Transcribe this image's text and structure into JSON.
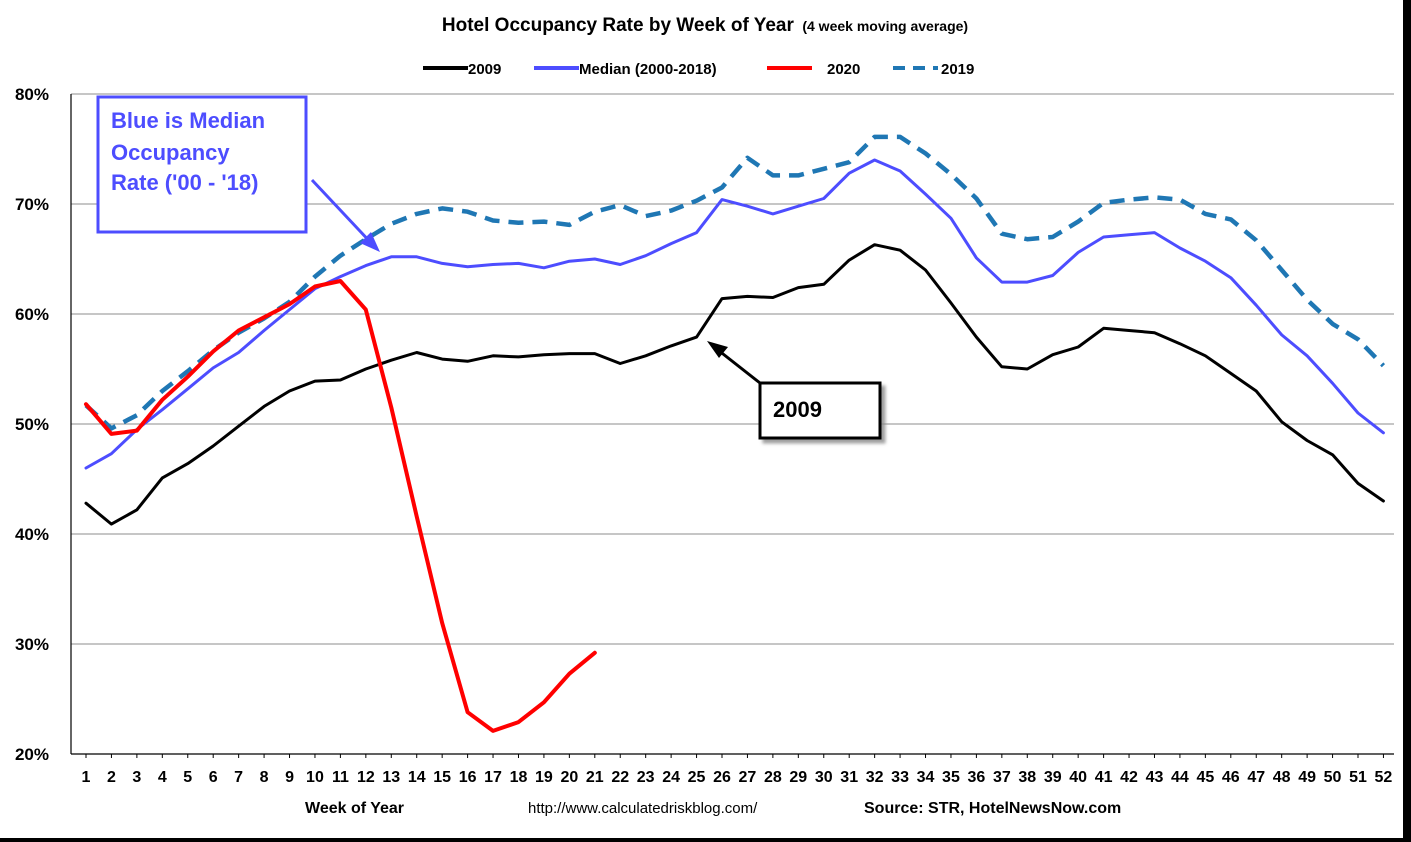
{
  "chart_data": {
    "type": "line",
    "title_main": "Hotel Occupancy Rate by  Week of Year",
    "title_sub": "(4 week moving average)",
    "xlabel": "Week of Year",
    "source_url": "http://www.calculatedriskblog.com/",
    "source_credit": "Source: STR, HotelNewsNow.com",
    "y_ticks": [
      "20%",
      "30%",
      "40%",
      "50%",
      "60%",
      "70%",
      "80%"
    ],
    "ylim": [
      20,
      80
    ],
    "x_ticks": [
      "1",
      "2",
      "3",
      "4",
      "5",
      "6",
      "7",
      "8",
      "9",
      "10",
      "11",
      "12",
      "13",
      "14",
      "15",
      "16",
      "17",
      "18",
      "19",
      "20",
      "21",
      "22",
      "23",
      "24",
      "25",
      "26",
      "27",
      "28",
      "29",
      "30",
      "31",
      "32",
      "33",
      "34",
      "35",
      "36",
      "37",
      "38",
      "39",
      "40",
      "41",
      "42",
      "43",
      "44",
      "45",
      "46",
      "47",
      "48",
      "49",
      "50",
      "51",
      "52"
    ],
    "grid": "horizontal",
    "legend_position": "top",
    "series": [
      {
        "name": "2009",
        "color": "#000000",
        "dash": "solid",
        "values": [
          42.8,
          40.9,
          42.2,
          45.1,
          46.4,
          48.0,
          49.8,
          51.6,
          53.0,
          53.9,
          54.0,
          55.0,
          55.8,
          56.5,
          55.9,
          55.7,
          56.2,
          56.1,
          56.3,
          56.4,
          56.4,
          55.5,
          56.2,
          57.1,
          57.9,
          61.4,
          61.6,
          61.5,
          62.4,
          62.7,
          64.9,
          66.3,
          65.8,
          64.0,
          61.0,
          57.9,
          55.2,
          55.0,
          56.3,
          57.0,
          58.7,
          58.5,
          58.3,
          57.3,
          56.2,
          54.6,
          53.0,
          50.2,
          48.5,
          47.2,
          44.6,
          43.0
        ]
      },
      {
        "name": "Median (2000-2018)",
        "color": "#4d4dff",
        "dash": "solid",
        "values": [
          46.0,
          47.3,
          49.5,
          51.3,
          53.2,
          55.1,
          56.5,
          58.5,
          60.4,
          62.3,
          63.4,
          64.4,
          65.2,
          65.2,
          64.6,
          64.3,
          64.5,
          64.6,
          64.2,
          64.8,
          65.0,
          64.5,
          65.3,
          66.4,
          67.4,
          70.4,
          69.8,
          69.1,
          69.8,
          70.5,
          72.8,
          74.0,
          73.0,
          70.9,
          68.7,
          65.1,
          62.9,
          62.9,
          63.5,
          65.6,
          67.0,
          67.2,
          67.4,
          66.0,
          64.8,
          63.3,
          60.8,
          58.1,
          56.2,
          53.7,
          51.0,
          49.2
        ]
      },
      {
        "name": "2020",
        "color": "#ff0000",
        "dash": "solid",
        "values": [
          51.8,
          49.1,
          49.4,
          52.2,
          54.3,
          56.6,
          58.5,
          59.7,
          60.9,
          62.5,
          63.0,
          60.4,
          51.5,
          41.6,
          31.9,
          23.8,
          22.1,
          22.9,
          24.7,
          27.3,
          29.2
        ]
      },
      {
        "name": "2019",
        "color": "#1f77b4",
        "dash": "dashed",
        "values": [
          51.7,
          49.6,
          50.8,
          53.0,
          54.8,
          56.7,
          58.3,
          59.6,
          61.1,
          63.4,
          65.3,
          66.8,
          68.2,
          69.1,
          69.6,
          69.3,
          68.5,
          68.3,
          68.4,
          68.1,
          69.3,
          69.9,
          68.9,
          69.4,
          70.3,
          71.5,
          74.2,
          72.6,
          72.6,
          73.2,
          73.8,
          76.1,
          76.1,
          74.6,
          72.7,
          70.5,
          67.3,
          66.8,
          67.0,
          68.4,
          70.1,
          70.4,
          70.6,
          70.4,
          69.1,
          68.6,
          66.7,
          64.0,
          61.3,
          59.1,
          57.7,
          55.3
        ]
      }
    ],
    "annotations": [
      {
        "text_lines": [
          "Blue is Median",
          "Occupancy",
          "Rate ('00 - '18)"
        ],
        "points_to": "Median (2000-2018)",
        "color": "#4d4dff"
      },
      {
        "text_lines": [
          "2009"
        ],
        "points_to": "2009",
        "color": "#000000"
      }
    ]
  }
}
